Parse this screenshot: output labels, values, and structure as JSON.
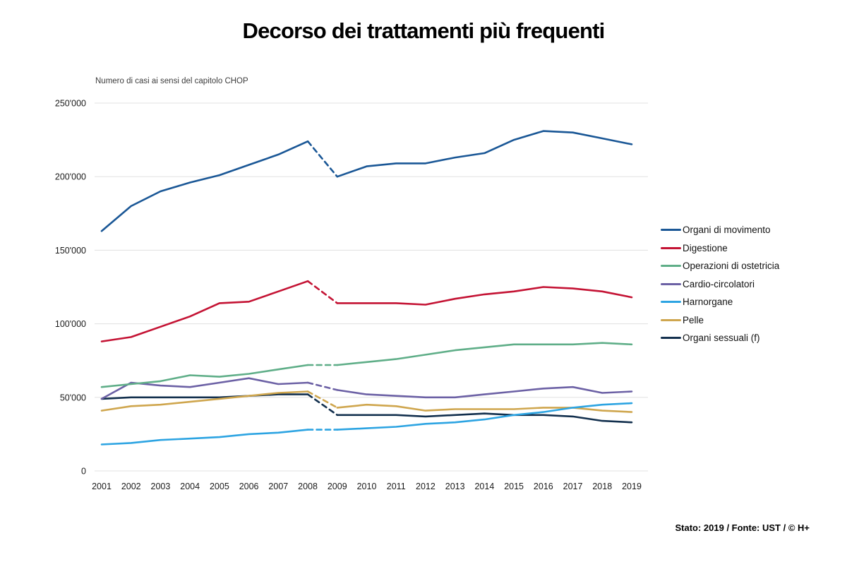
{
  "title": "Decorso dei trattamenti più frequenti",
  "subtitle": "Numero di casi ai sensi del capitolo CHOP",
  "footer": "Stato: 2019 / Fonte: UST / © H+",
  "chart_data": {
    "type": "line",
    "title": "Decorso dei trattamenti più frequenti",
    "ylabel": "Numero di casi ai sensi del capitolo CHOP",
    "xlabel": "",
    "ylim": [
      0,
      250000
    ],
    "grid": "horizontal",
    "legend_position": "right",
    "gridline_color": "#e0e0e0",
    "dashed_segment": {
      "from": 2008,
      "to": 2009
    },
    "x": [
      2001,
      2002,
      2003,
      2004,
      2005,
      2006,
      2007,
      2008,
      2009,
      2010,
      2011,
      2012,
      2013,
      2014,
      2015,
      2016,
      2017,
      2018,
      2019
    ],
    "y_ticks": [
      {
        "value": 0,
        "label": "0"
      },
      {
        "value": 50000,
        "label": "50'000"
      },
      {
        "value": 100000,
        "label": "100'000"
      },
      {
        "value": 150000,
        "label": "150'000"
      },
      {
        "value": 200000,
        "label": "200'000"
      },
      {
        "value": 250000,
        "label": "250'000"
      }
    ],
    "series": [
      {
        "name": "Organi di movimento",
        "color": "#1a5796",
        "values": [
          163000,
          180000,
          190000,
          196000,
          201000,
          208000,
          215000,
          224000,
          200000,
          207000,
          209000,
          209000,
          213000,
          216000,
          225000,
          231000,
          230000,
          226000,
          222000
        ]
      },
      {
        "name": "Digestione",
        "color": "#c41334",
        "values": [
          88000,
          91000,
          98000,
          105000,
          114000,
          115000,
          122000,
          129000,
          114000,
          114000,
          114000,
          113000,
          117000,
          120000,
          122000,
          125000,
          124000,
          122000,
          118000
        ]
      },
      {
        "name": "Operazioni di ostetricia",
        "color": "#5fae88",
        "values": [
          57000,
          59000,
          61000,
          65000,
          64000,
          66000,
          69000,
          72000,
          72000,
          74000,
          76000,
          79000,
          82000,
          84000,
          86000,
          86000,
          86000,
          87000,
          86000
        ]
      },
      {
        "name": "Cardio-circolatori",
        "color": "#6c61a5",
        "values": [
          49000,
          60000,
          58000,
          57000,
          60000,
          63000,
          59000,
          60000,
          55000,
          52000,
          51000,
          50000,
          50000,
          52000,
          54000,
          56000,
          57000,
          53000,
          54000
        ]
      },
      {
        "name": "Harnorgane",
        "color": "#2da4e2",
        "values": [
          18000,
          19000,
          21000,
          22000,
          23000,
          25000,
          26000,
          28000,
          28000,
          29000,
          30000,
          32000,
          33000,
          35000,
          38000,
          40000,
          43000,
          45000,
          46000
        ]
      },
      {
        "name": "Pelle",
        "color": "#cfa64e",
        "values": [
          41000,
          44000,
          45000,
          47000,
          49000,
          51000,
          53000,
          54000,
          43000,
          45000,
          44000,
          41000,
          42000,
          42000,
          42000,
          43000,
          43000,
          41000,
          40000
        ]
      },
      {
        "name": "Organi sessuali (f)",
        "color": "#13304e",
        "values": [
          49000,
          50000,
          50000,
          50000,
          50000,
          51000,
          52000,
          52000,
          38000,
          38000,
          38000,
          37000,
          38000,
          39000,
          38000,
          38000,
          37000,
          34000,
          33000
        ]
      }
    ]
  }
}
